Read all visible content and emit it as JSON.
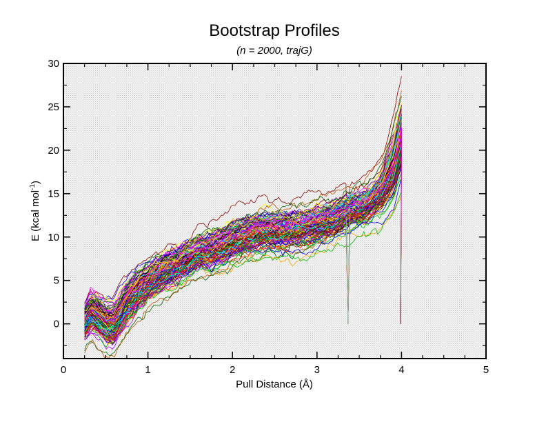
{
  "chart_data": {
    "type": "line",
    "title": "Bootstrap Profiles",
    "subtitle": "(n = 2000, trajG)",
    "xlabel": "Pull Distance (Å)",
    "ylabel": {
      "main": "E (kcal mol",
      "superscript": "-1",
      "close": ")"
    },
    "xlim": [
      0,
      5
    ],
    "ylim": [
      -4,
      30
    ],
    "xticks": [
      0,
      1,
      2,
      3,
      4,
      5
    ],
    "xtick_labels": [
      "0",
      "1",
      "2",
      "3",
      "4",
      "5"
    ],
    "yticks": [
      0,
      5,
      10,
      15,
      20,
      25,
      30
    ],
    "ytick_labels": [
      "0",
      "5",
      "10",
      "15",
      "20",
      "25",
      "30"
    ],
    "x_minor_step": 0.25,
    "y_minor_step": 2.5,
    "background": "light gray stipple",
    "grid": false,
    "legend": "none",
    "series_colors": [
      "#000000",
      "#ff0000",
      "#00bb00",
      "#0000ff",
      "#ffff00",
      "#bb5500",
      "#aaaaaa",
      "#aa00ff",
      "#00ffff",
      "#ff00ff",
      "#ffa500",
      "#660099",
      "#8b0000",
      "#006400"
    ],
    "series_count_drawn": 140,
    "mean_profile": {
      "x": [
        0.25,
        0.33,
        0.42,
        0.5,
        0.6,
        0.75,
        0.9,
        1.0,
        1.1,
        1.25,
        1.4,
        1.5,
        1.6,
        1.75,
        1.9,
        2.0,
        2.2,
        2.4,
        2.6,
        2.8,
        3.0,
        3.2,
        3.35,
        3.45,
        3.6,
        3.75,
        3.9,
        4.0
      ],
      "y": [
        0.2,
        1.5,
        0.8,
        0.0,
        0.0,
        2.5,
        4.0,
        4.8,
        5.5,
        6.3,
        7.0,
        7.6,
        8.2,
        8.4,
        9.0,
        9.6,
        10.2,
        10.7,
        10.6,
        10.8,
        11.4,
        12.0,
        12.7,
        13.1,
        13.7,
        15.0,
        17.8,
        21.5
      ]
    },
    "spread_profile": {
      "x": [
        0.25,
        0.5,
        0.75,
        1.0,
        1.5,
        2.0,
        2.5,
        3.0,
        3.5,
        4.0
      ],
      "y": [
        1.2,
        1.5,
        1.6,
        1.4,
        1.3,
        1.5,
        1.5,
        1.4,
        1.2,
        1.5
      ]
    },
    "drop_features": [
      {
        "x": 3.36,
        "from": 12.5,
        "to": 0
      },
      {
        "x": 3.99,
        "from": 23.0,
        "to": 0
      }
    ]
  }
}
